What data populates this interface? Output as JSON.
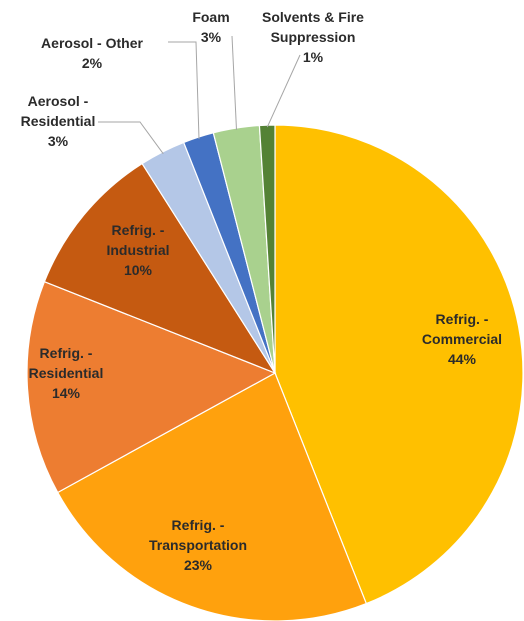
{
  "chart_data": {
    "type": "pie",
    "title": "",
    "legend": "none",
    "slices": [
      {
        "name": "Refrig. - Commercial",
        "label_lines": [
          "Refrig. -",
          "Commercial"
        ],
        "value": 44,
        "value_label": "44%",
        "color": "#FFC000"
      },
      {
        "name": "Refrig. - Transportation",
        "label_lines": [
          "Refrig. -",
          "Transportation"
        ],
        "value": 23,
        "value_label": "23%",
        "color": "#FFA10D"
      },
      {
        "name": "Refrig. - Residential",
        "label_lines": [
          "Refrig. -",
          "Residential"
        ],
        "value": 14,
        "value_label": "14%",
        "color": "#ED7D31"
      },
      {
        "name": "Refrig. - Industrial",
        "label_lines": [
          "Refrig. -",
          "Industrial"
        ],
        "value": 10,
        "value_label": "10%",
        "color": "#C55A11"
      },
      {
        "name": "Aerosol - Residential",
        "label_lines": [
          "Aerosol -",
          "Residential"
        ],
        "value": 3,
        "value_label": "3%",
        "color": "#B4C7E7"
      },
      {
        "name": "Aerosol - Other",
        "label_lines": [
          "Aerosol - Other"
        ],
        "value": 2,
        "value_label": "2%",
        "color": "#4472C4"
      },
      {
        "name": "Foam",
        "label_lines": [
          "Foam"
        ],
        "value": 3,
        "value_label": "3%",
        "color": "#A9D18E"
      },
      {
        "name": "Solvents & Fire Suppression",
        "label_lines": [
          "Solvents & Fire",
          "Suppression"
        ],
        "value": 1,
        "value_label": "1%",
        "color": "#548235"
      }
    ]
  }
}
